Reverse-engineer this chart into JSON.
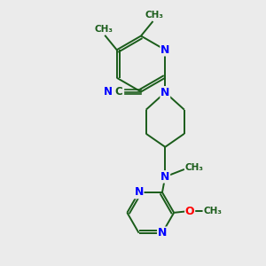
{
  "background_color": "#ebebeb",
  "bond_color": "#1a5c1a",
  "N_color": "#0000ff",
  "O_color": "#ff0000",
  "C_color": "#1a5c1a",
  "figsize": [
    3.0,
    3.0
  ],
  "dpi": 100,
  "xlim": [
    0,
    10
  ],
  "ylim": [
    0,
    10
  ]
}
